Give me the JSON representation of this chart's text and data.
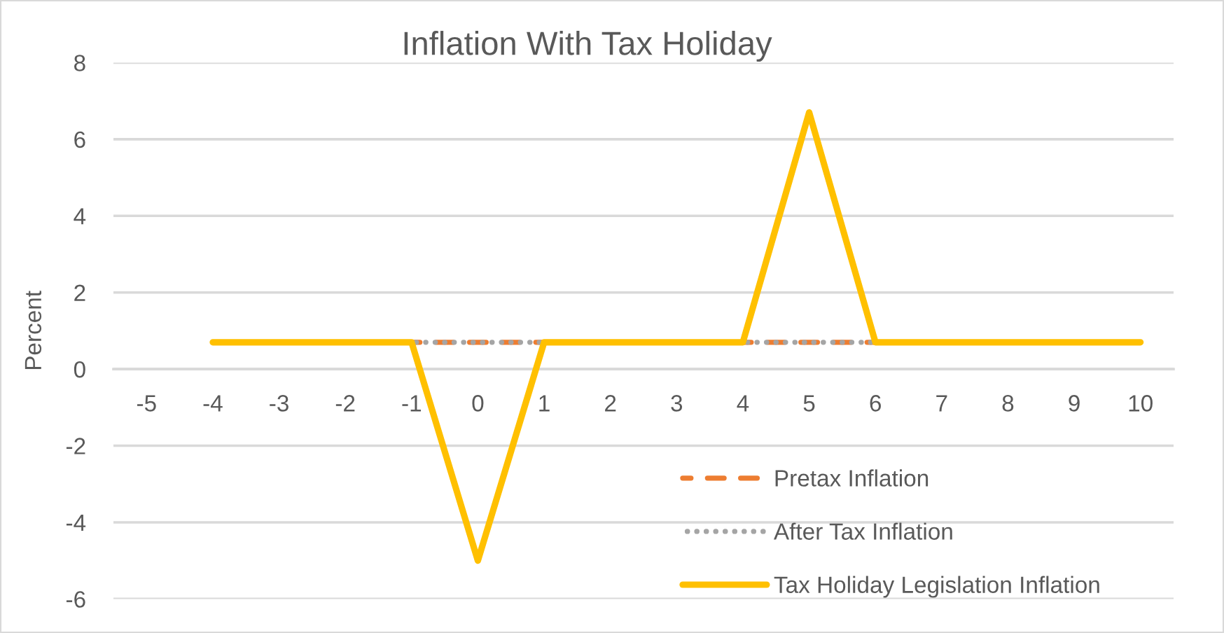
{
  "chart_data": {
    "type": "line",
    "title": "Inflation With Tax Holiday",
    "ylabel": "Percent",
    "categories": [
      "-5",
      "-4",
      "-3",
      "-2",
      "-1",
      "0",
      "1",
      "2",
      "3",
      "4",
      "5",
      "6",
      "7",
      "8",
      "9",
      "10"
    ],
    "series": [
      {
        "name": "Pretax Inflation",
        "color": "#ed7d31",
        "line_style": "dashed",
        "values": [
          null,
          null,
          null,
          null,
          0.7,
          0.7,
          0.7,
          null,
          null,
          0.7,
          0.7,
          0.7,
          null,
          null,
          null,
          null
        ]
      },
      {
        "name": "After Tax Inflation",
        "color": "#a5a5a5",
        "line_style": "dotted",
        "values": [
          null,
          null,
          null,
          null,
          0.7,
          0.7,
          0.7,
          null,
          null,
          0.7,
          0.7,
          0.7,
          null,
          null,
          null,
          null
        ]
      },
      {
        "name": "Tax Holiday Legislation Inflation",
        "color": "#ffc000",
        "line_style": "solid",
        "values": [
          null,
          0.7,
          0.7,
          0.7,
          0.7,
          -5,
          0.7,
          0.7,
          0.7,
          0.7,
          6.7,
          0.7,
          0.7,
          0.7,
          0.7,
          0.7
        ]
      }
    ],
    "ylim": [
      -6,
      8
    ],
    "yticks": [
      -6,
      -4,
      -2,
      0,
      2,
      4,
      6,
      8
    ],
    "grid": "y",
    "legend": "bottom right"
  }
}
